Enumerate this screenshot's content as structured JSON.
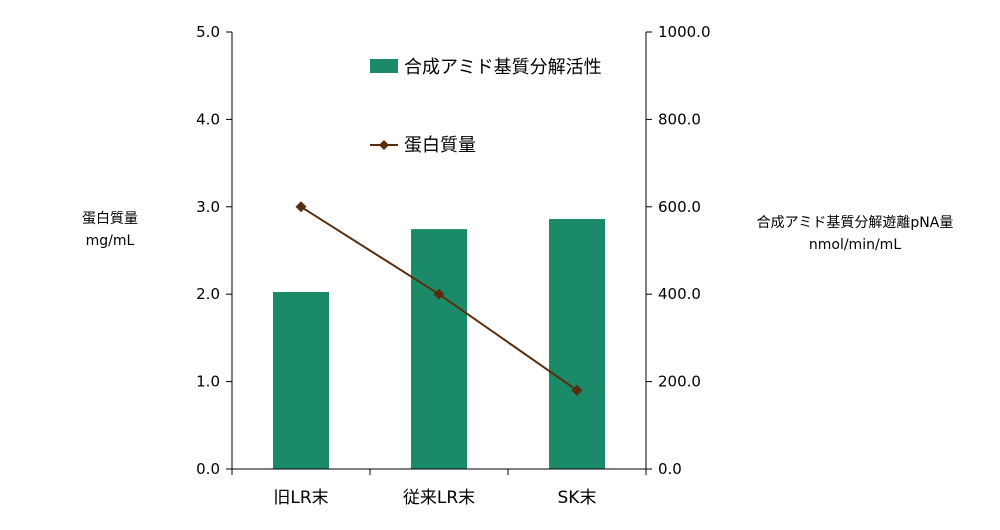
{
  "chart_data": {
    "type": "bar",
    "categories": [
      "旧LR末",
      "従来LR末",
      "SK末"
    ],
    "series": [
      {
        "name": "合成アミド基質分解活性",
        "type": "bar",
        "axis": "right",
        "values": [
          405,
          549,
          572
        ]
      },
      {
        "name": "蛋白質量",
        "type": "line",
        "axis": "left",
        "values": [
          3.0,
          2.0,
          0.9
        ]
      }
    ],
    "y_left": {
      "title_line1": "蛋白質量",
      "title_line2": "mg/mL",
      "ylim": [
        0,
        5
      ],
      "ticks": [
        "0.0",
        "1.0",
        "2.0",
        "3.0",
        "4.0",
        "5.0"
      ]
    },
    "y_right": {
      "title_line1": "合成アミド基質分解遊離pNA量",
      "title_line2": "nmol/min/mL",
      "ylim": [
        0,
        1000
      ],
      "ticks": [
        "0.0",
        "200.0",
        "400.0",
        "600.0",
        "800.0",
        "1000.0"
      ]
    },
    "legend_placement": "top-center",
    "grid": false,
    "colors": {
      "bar": "#1b8a68",
      "line": "#5a2d0c",
      "axis": "#000000"
    }
  }
}
